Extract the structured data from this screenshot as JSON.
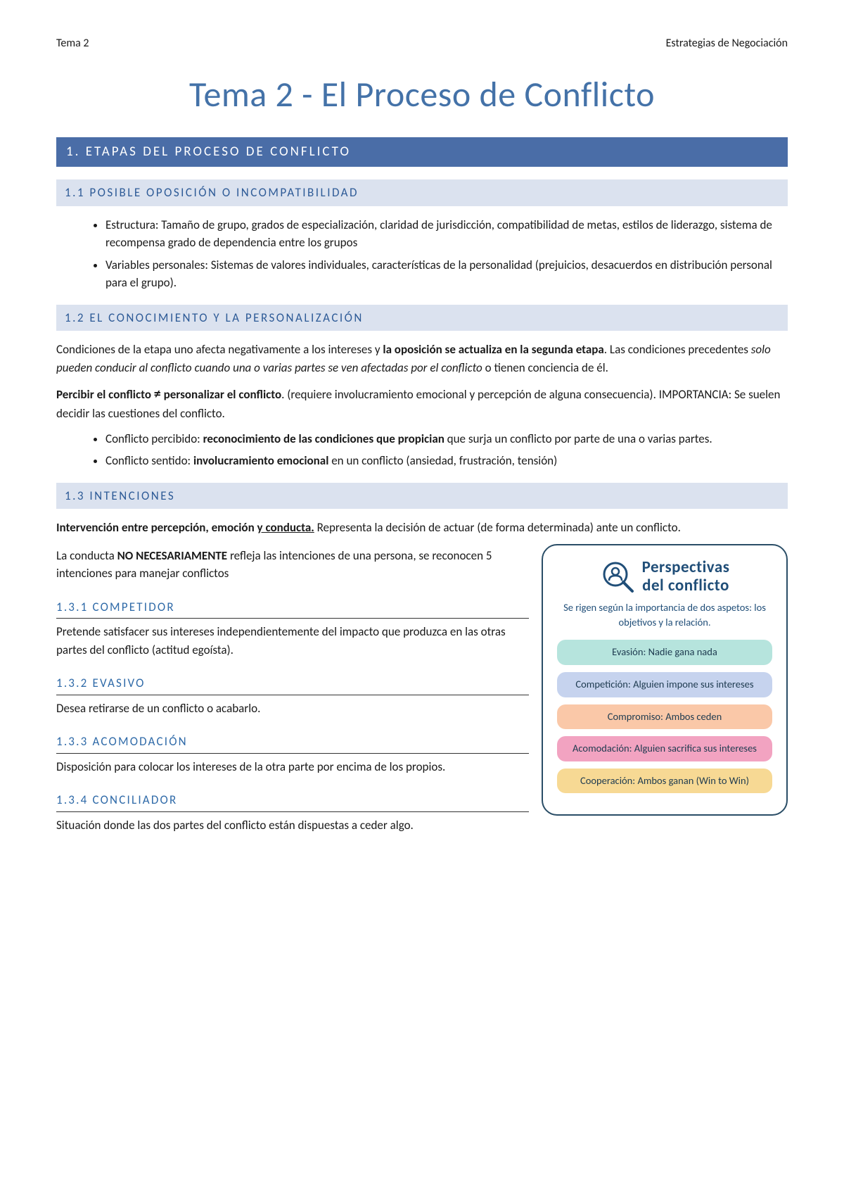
{
  "header": {
    "left": "Tema 2",
    "right": "Estrategias de Negociación"
  },
  "title": "Tema 2 - El Proceso de Conflicto",
  "s1": {
    "heading": "1. ETAPAS DEL PROCESO DE CONFLICTO",
    "s11": {
      "heading": "1.1 POSIBLE OPOSICIÓN O INCOMPATIBILIDAD",
      "bullets": [
        "Estructura: Tamaño de grupo, grados de especialización, claridad de jurisdicción, compatibilidad de metas, estilos de liderazgo, sistema de recompensa grado de dependencia entre los grupos",
        "Variables personales: Sistemas de valores individuales, características de la personalidad (prejuicios, desacuerdos en distribución personal para el grupo)."
      ]
    },
    "s12": {
      "heading": "1.2 EL CONOCIMIENTO Y LA PERSONALIZACIÓN",
      "p1a": "Condiciones de la etapa uno afecta negativamente a los intereses y ",
      "p1b": "la oposición se actualiza en la segunda etapa",
      "p1c": ". Las condiciones precedentes ",
      "p1d": "solo pueden conducir al conflicto cuando una o varias partes se ven afectadas por el conflicto",
      "p1e": " o tienen conciencia de él.",
      "p2a": "Percibir el conflicto ",
      "p2b": "≠",
      "p2c": " personalizar el conflicto",
      "p2d": ". (requiere involucramiento emocional y percepción de alguna consecuencia). IMPORTANCIA: Se suelen decidir las cuestiones del conflicto.",
      "b1a": "Conflicto percibido: ",
      "b1b": "reconocimiento de las condiciones que propician",
      "b1c": " que surja un conflicto por parte de una o varias partes.",
      "b2a": "Conflicto sentido: ",
      "b2b": "involucramiento emocional",
      "b2c": " en un conflicto (ansiedad, frustración, tensión)"
    },
    "s13": {
      "heading": "1.3 INTENCIONES",
      "p1a": "Intervención entre percepción, emoción ",
      "p1b": "y conducta.",
      "p1c": " Representa la decisión de actuar (de forma determinada) ante un conflicto.",
      "p2a": "La conducta ",
      "p2b": "NO NECESARIAMENTE",
      "p2c": " refleja las intenciones de una persona, se reconocen 5 intenciones para manejar conflictos",
      "s131": {
        "heading": "1.3.1 COMPETIDOR",
        "text": "Pretende satisfacer sus intereses independientemente del impacto que produzca en las otras partes del conflicto (actitud egoísta)."
      },
      "s132": {
        "heading": "1.3.2 EVASIVO",
        "text": "Desea retirarse de un conflicto o acabarlo."
      },
      "s133": {
        "heading": "1.3.3 ACOMODACIÓN",
        "text": "Disposición para colocar los intereses de la otra parte por encima de los propios."
      },
      "s134": {
        "heading": "1.3.4 CONCILIADOR",
        "text": "Situación donde las dos partes del conflicto están dispuestas a ceder algo."
      }
    }
  },
  "infobox": {
    "title_line1": "Perspectivas",
    "title_line2": "del conflicto",
    "subtitle": "Se rigen según la importancia de dos aspetos: los objetivos y la relación.",
    "chips": [
      {
        "text": "Evasión:  Nadie gana nada",
        "color": "teal"
      },
      {
        "text": "Competición:  Alguien impone sus intereses",
        "color": "blue"
      },
      {
        "text": "Compromiso: Ambos ceden",
        "color": "orange"
      },
      {
        "text": "Acomodación: Alguien sacrifica sus intereses",
        "color": "pink"
      },
      {
        "text": "Cooperación: Ambos ganan (Win to Win)",
        "color": "yellow"
      }
    ],
    "icon_stroke": "#204e78"
  },
  "colors": {
    "title_color": "#4472a8",
    "h1_bg": "#4a6da7",
    "h2_bg": "#dbe2ef",
    "h2_fg": "#2e5b97",
    "h3_fg": "#2f6aa8",
    "infobox_border": "#2a4d66"
  }
}
